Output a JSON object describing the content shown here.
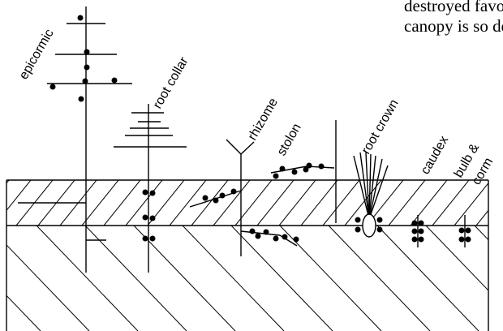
{
  "text_lines": [
    "destroyed favor",
    "canopy is so den"
  ],
  "labels": {
    "epicormic": "epicormic",
    "root_collar": "root collar",
    "rhizome": "rhizome",
    "stolon": "stolon",
    "root_crown": "root crown",
    "caudex": "caudex",
    "bulb_corm_1": "bulb &",
    "bulb_corm_2": "corm"
  }
}
